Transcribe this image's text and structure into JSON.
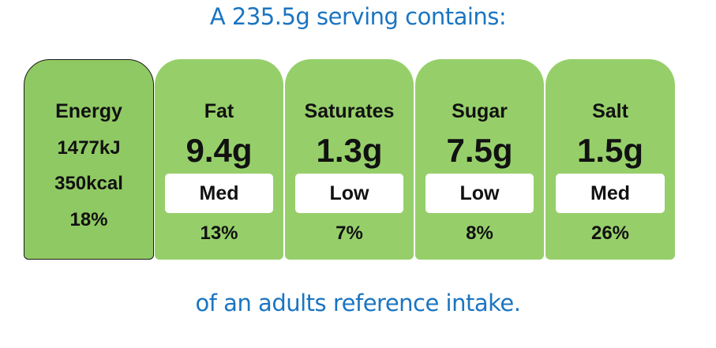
{
  "header": {
    "text": "A 235.5g serving contains:"
  },
  "footer": {
    "text": "of an adults reference intake."
  },
  "energy": {
    "title": "Energy",
    "kj": "1477kJ",
    "kcal": "350kcal",
    "percent": "18%"
  },
  "nutrients": [
    {
      "title": "Fat",
      "amount": "9.4g",
      "level": "Med",
      "percent": "13%"
    },
    {
      "title": "Saturates",
      "amount": "1.3g",
      "level": "Low",
      "percent": "7%"
    },
    {
      "title": "Sugar",
      "amount": "7.5g",
      "level": "Low",
      "percent": "8%"
    },
    {
      "title": "Salt",
      "amount": "1.5g",
      "level": "Med",
      "percent": "26%"
    }
  ],
  "colors": {
    "card_green": "#96cf6a",
    "heading_blue": "#1a75c2",
    "level_background": "#ffffff"
  }
}
